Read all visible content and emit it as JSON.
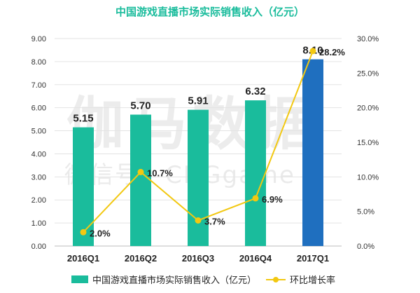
{
  "chart_data": {
    "type": "bar",
    "title": "中国游戏直播市场实际销售收入（亿元）",
    "categories": [
      "2016Q1",
      "2016Q2",
      "2016Q3",
      "2016Q4",
      "2017Q1"
    ],
    "series": [
      {
        "name": "中国游戏直播市场实际销售收入（亿元）",
        "type": "bar",
        "axis": "left",
        "values": [
          5.15,
          5.7,
          5.91,
          6.32,
          8.1
        ],
        "labels": [
          "5.15",
          "5.70",
          "5.91",
          "6.32",
          "8.10"
        ]
      },
      {
        "name": "环比增长率",
        "type": "line",
        "axis": "right",
        "values": [
          2.0,
          10.7,
          3.7,
          6.9,
          28.2
        ],
        "labels": [
          "2.0%",
          "10.7%",
          "3.7%",
          "6.9%",
          "28.2%"
        ]
      }
    ],
    "y_left": {
      "min": 0,
      "max": 9,
      "ticks": [
        "0.00",
        "1.00",
        "2.00",
        "3.00",
        "4.00",
        "5.00",
        "6.00",
        "7.00",
        "8.00",
        "9.00"
      ]
    },
    "y_right": {
      "min": 0,
      "max": 30,
      "ticks": [
        "0.0%",
        "5.0%",
        "10.0%",
        "15.0%",
        "20.0%",
        "25.0%",
        "30.0%"
      ]
    },
    "grid": true,
    "legend": "bottom",
    "colors": {
      "bar": "#1abc9c",
      "bar_highlight": "#1f6fbf",
      "line": "#f2c811",
      "title": "#1abc9c"
    }
  },
  "watermark": {
    "line1": "伽马数据",
    "line2": "微信号：CNGgame"
  }
}
